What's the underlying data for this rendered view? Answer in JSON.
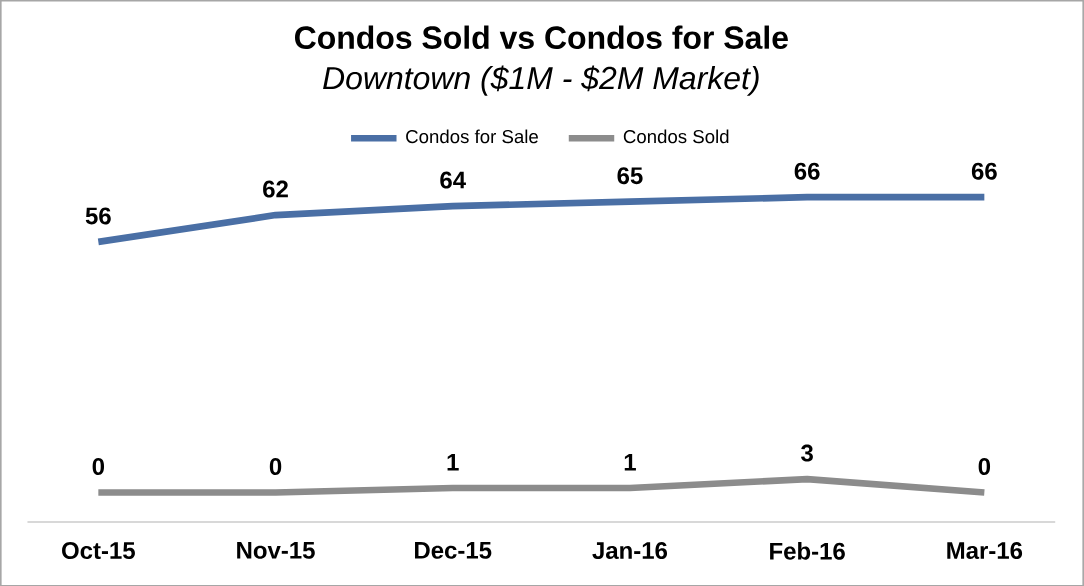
{
  "chart_data": {
    "type": "line",
    "title": "Condos Sold vs Condos for Sale",
    "subtitle": "Downtown ($1M - $2M Market)",
    "categories": [
      "Oct-15",
      "Nov-15",
      "Dec-15",
      "Jan-16",
      "Feb-16",
      "Mar-16"
    ],
    "series": [
      {
        "name": "Condos for Sale",
        "color": "#4a6fa5",
        "values": [
          56,
          62,
          64,
          65,
          66,
          66
        ]
      },
      {
        "name": "Condos Sold",
        "color": "#8c8c8c",
        "values": [
          0,
          0,
          1,
          1,
          3,
          0
        ]
      }
    ],
    "tick_labels": "x",
    "data_labels": true,
    "legend": "top",
    "grid": false,
    "marker": "none"
  }
}
